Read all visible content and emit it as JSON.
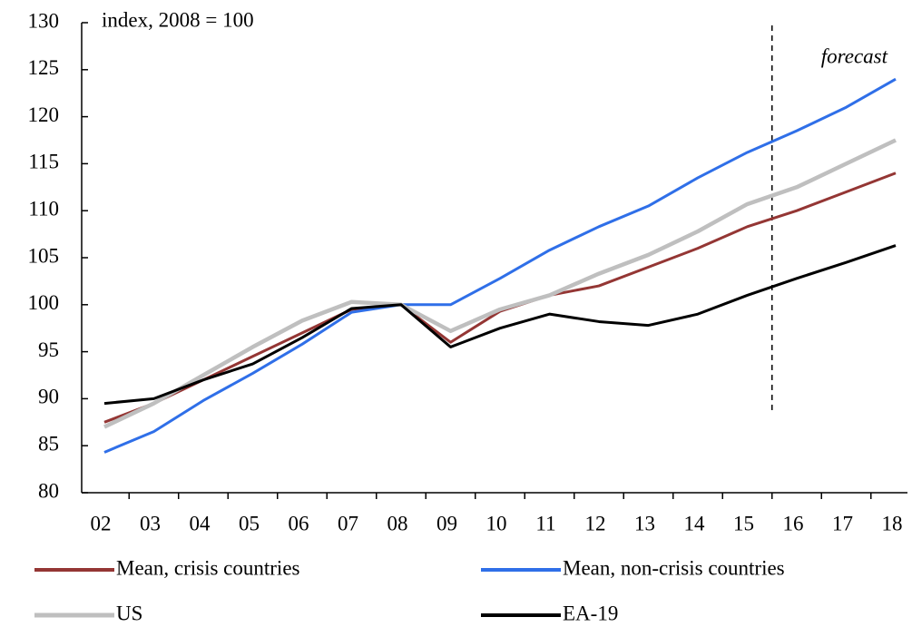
{
  "chart_data": {
    "type": "line",
    "subtitle": "index, 2008 = 100",
    "annotation": "forecast",
    "categories": [
      "02",
      "03",
      "04",
      "05",
      "06",
      "07",
      "08",
      "09",
      "10",
      "11",
      "12",
      "13",
      "14",
      "15",
      "16",
      "17",
      "18"
    ],
    "series": [
      {
        "name": "Mean, crisis countries",
        "color": "#943634",
        "values": [
          87.5,
          89.5,
          92,
          94.5,
          97,
          99.5,
          100,
          96,
          99.3,
          101,
          102,
          104,
          106,
          108.3,
          110,
          112,
          114
        ]
      },
      {
        "name": "Mean, non-crisis countries",
        "color": "#2f6fe8",
        "values": [
          84.3,
          86.5,
          89.8,
          92.7,
          95.8,
          99.2,
          100,
          100,
          102.8,
          105.8,
          108.3,
          110.5,
          113.5,
          116.2,
          118.5,
          121,
          124
        ]
      },
      {
        "name": "US",
        "color": "#bfbfbf",
        "values": [
          87,
          89.5,
          92.5,
          95.5,
          98.3,
          100.3,
          100,
          97.2,
          99.5,
          101,
          103.3,
          105.3,
          107.8,
          110.7,
          112.5,
          115,
          117.5
        ]
      },
      {
        "name": "EA-19",
        "color": "#000000",
        "values": [
          89.5,
          90,
          92,
          93.7,
          96.5,
          99.6,
          100,
          95.5,
          97.5,
          99,
          98.2,
          97.8,
          99,
          101,
          102.8,
          104.5,
          106.3
        ]
      }
    ],
    "ylim": [
      80,
      130
    ],
    "yticks": [
      80,
      85,
      90,
      95,
      100,
      105,
      110,
      115,
      120,
      125,
      130
    ]
  }
}
